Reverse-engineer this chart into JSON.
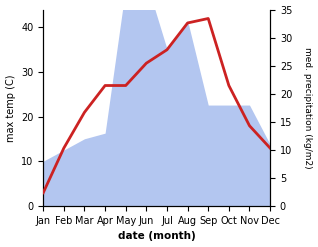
{
  "months": [
    "Jan",
    "Feb",
    "Mar",
    "Apr",
    "May",
    "Jun",
    "Jul",
    "Aug",
    "Sep",
    "Oct",
    "Nov",
    "Dec"
  ],
  "temperature": [
    3,
    13,
    21,
    27,
    27,
    32,
    35,
    41,
    42,
    27,
    18,
    13
  ],
  "precipitation": [
    8,
    10,
    12,
    13,
    39,
    40,
    28,
    33,
    18,
    18,
    18,
    11
  ],
  "temp_color": "#cc2222",
  "precip_color_fill": "#b3c6f0",
  "temp_ylim": [
    0,
    44
  ],
  "precip_ylim": [
    0,
    35
  ],
  "temp_yticks": [
    0,
    10,
    20,
    30,
    40
  ],
  "precip_yticks": [
    0,
    5,
    10,
    15,
    20,
    25,
    30,
    35
  ],
  "ylabel_left": "max temp (C)",
  "ylabel_right": "med. precipitation (kg/m2)",
  "xlabel": "date (month)",
  "figsize": [
    3.18,
    2.47
  ],
  "dpi": 100
}
